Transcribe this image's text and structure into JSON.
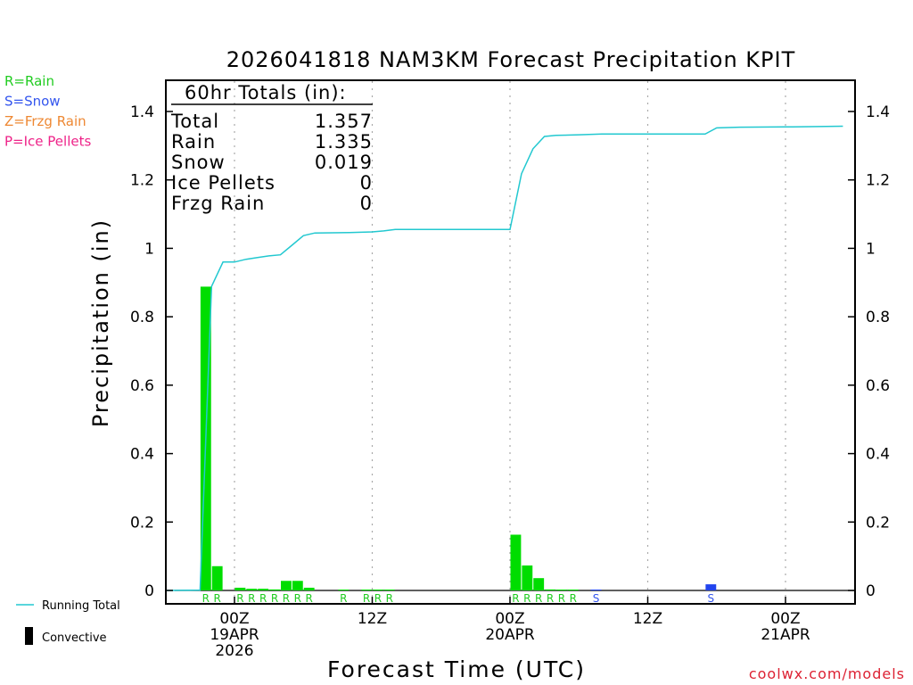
{
  "chart_data": {
    "type": "bar",
    "title": "2026041818 NAM3KM Forecast Precipitation KPIT",
    "xlabel": "Forecast Time (UTC)",
    "ylabel": "Precipitation (in)",
    "ylim": [
      0,
      1.5
    ],
    "xlim_hours": [
      -7,
      53
    ],
    "y_ticks": [
      0,
      0.2,
      0.4,
      0.6,
      0.8,
      1,
      1.2,
      1.4
    ],
    "y_tick_labels": [
      "0",
      "0.2",
      "0.4",
      "0.6",
      "0.8",
      "1",
      "1.2",
      "1.4"
    ],
    "x_ticks": [
      {
        "hour": 0,
        "lines": [
          "00Z",
          "19APR",
          "2026"
        ]
      },
      {
        "hour": 12,
        "lines": [
          "12Z"
        ]
      },
      {
        "hour": 24,
        "lines": [
          "00Z",
          "20APR"
        ]
      },
      {
        "hour": 36,
        "lines": [
          "12Z"
        ]
      },
      {
        "hour": 48,
        "lines": [
          "00Z",
          "21APR"
        ]
      }
    ],
    "legend_types": [
      {
        "label": "R=Rain",
        "color": "#22cc22"
      },
      {
        "label": "S=Snow",
        "color": "#3355ee"
      },
      {
        "label": "Z=Frzg Rain",
        "color": "#ee8833"
      },
      {
        "label": "P=Ice Pellets",
        "color": "#ee2288"
      }
    ],
    "legend_lines": {
      "running_total": "Running Total",
      "convective": "Convective"
    },
    "totals": {
      "header": "60hr Totals (in):",
      "rows": [
        {
          "label": "Total",
          "value": "1.357"
        },
        {
          "label": "Rain",
          "value": "1.335"
        },
        {
          "label": "Snow",
          "value": "0.019"
        },
        {
          "label": "Ice Pellets",
          "value": "0"
        },
        {
          "label": "Frzg Rain",
          "value": "0"
        }
      ]
    },
    "bars": [
      {
        "hour": -2,
        "value": 0.888,
        "type": "R",
        "color": "#00dd00"
      },
      {
        "hour": -1,
        "value": 0.071,
        "type": "R",
        "color": "#00dd00"
      },
      {
        "hour": 1,
        "value": 0.008,
        "type": "R",
        "color": "#00dd00"
      },
      {
        "hour": 2,
        "value": 0.005,
        "type": "R",
        "color": "#00dd00"
      },
      {
        "hour": 3,
        "value": 0.005,
        "type": "R",
        "color": "#00dd00"
      },
      {
        "hour": 4,
        "value": 0.003,
        "type": "R",
        "color": "#00dd00"
      },
      {
        "hour": 5,
        "value": 0.028,
        "type": "R",
        "color": "#00dd00"
      },
      {
        "hour": 6,
        "value": 0.028,
        "type": "R",
        "color": "#00dd00"
      },
      {
        "hour": 7,
        "value": 0.008,
        "type": "R",
        "color": "#00dd00"
      },
      {
        "hour": 10,
        "value": 0.001,
        "type": "R",
        "color": "#00dd00"
      },
      {
        "hour": 12,
        "value": 0.002,
        "type": "R",
        "color": "#00dd00"
      },
      {
        "hour": 13,
        "value": 0.001,
        "type": "R",
        "color": "#00dd00"
      },
      {
        "hour": 14,
        "value": 0.001,
        "type": "R",
        "color": "#00dd00"
      },
      {
        "hour": 25,
        "value": 0.163,
        "type": "R",
        "color": "#00dd00"
      },
      {
        "hour": 26,
        "value": 0.073,
        "type": "R",
        "color": "#00dd00"
      },
      {
        "hour": 27,
        "value": 0.036,
        "type": "R",
        "color": "#00dd00"
      },
      {
        "hour": 28,
        "value": 0.003,
        "type": "R",
        "color": "#00dd00"
      },
      {
        "hour": 29,
        "value": 0.002,
        "type": "R",
        "color": "#00dd00"
      },
      {
        "hour": 30,
        "value": 0.001,
        "type": "R",
        "color": "#00dd00"
      },
      {
        "hour": 32,
        "value": 0.0005,
        "type": "S",
        "color": "#2244ee"
      },
      {
        "hour": 42,
        "value": 0.018,
        "type": "S",
        "color": "#2244ee"
      }
    ],
    "running_total": {
      "hours": [
        -6,
        -3,
        -2,
        -1,
        0,
        1,
        2,
        3,
        4,
        5,
        6,
        7,
        10,
        12,
        13,
        14,
        24,
        25,
        26,
        27,
        28,
        30,
        32,
        36,
        41,
        42,
        44,
        48,
        53
      ],
      "values": [
        0,
        0.001,
        0.889,
        0.96,
        0.96,
        0.968,
        0.973,
        0.978,
        0.981,
        1.009,
        1.037,
        1.045,
        1.046,
        1.048,
        1.051,
        1.055,
        1.055,
        1.218,
        1.291,
        1.327,
        1.33,
        1.332,
        1.334,
        1.334,
        1.334,
        1.352,
        1.354,
        1.355,
        1.357
      ]
    },
    "colors": {
      "rain_bar": "#00dd00",
      "snow_bar": "#2244ee",
      "rain_label": "#22cc22",
      "snow_label": "#3355ee",
      "running_total": "#22c8d0",
      "axis": "#000000",
      "grid": "#aaaaaa",
      "credit": "#dd2233"
    }
  },
  "footer": {
    "credit": "coolwx.com/models"
  }
}
